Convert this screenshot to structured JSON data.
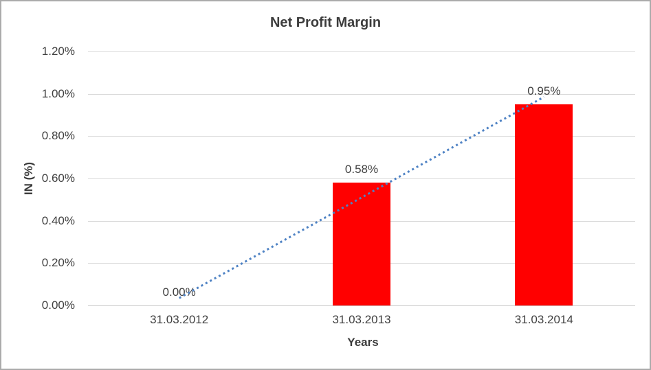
{
  "chart_data": {
    "type": "bar",
    "title": "Net Profit Margin",
    "xlabel": "Years",
    "ylabel": "IN (%)",
    "categories": [
      "31.03.2012",
      "31.03.2013",
      "31.03.2014"
    ],
    "values": [
      0.0,
      0.58,
      0.95
    ],
    "value_labels": [
      "0.00%",
      "0.58%",
      "0.95%"
    ],
    "ylim": [
      0,
      1.2
    ],
    "yticks": [
      {
        "value": 0.0,
        "label": "0.00%"
      },
      {
        "value": 0.2,
        "label": "0.20%"
      },
      {
        "value": 0.4,
        "label": "0.40%"
      },
      {
        "value": 0.6,
        "label": "0.60%"
      },
      {
        "value": 0.8,
        "label": "0.80%"
      },
      {
        "value": 1.0,
        "label": "1.00%"
      },
      {
        "value": 1.2,
        "label": "1.20%"
      }
    ],
    "grid": true,
    "legend": "none",
    "bar_color": "#FF0000",
    "trendline": {
      "type": "linear",
      "style": "dotted",
      "color": "#4E82C4"
    }
  }
}
